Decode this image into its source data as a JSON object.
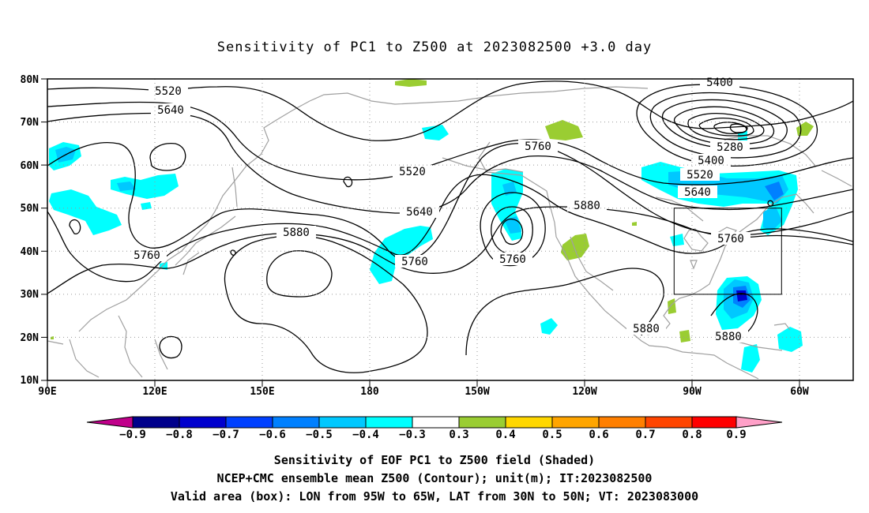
{
  "title": "Sensitivity of PC1 to Z500 at 2023082500 +3.0 day",
  "map": {
    "lat_labels": [
      "80N",
      "70N",
      "60N",
      "50N",
      "40N",
      "30N",
      "20N",
      "10N"
    ],
    "lon_labels": [
      "90E",
      "120E",
      "150E",
      "180",
      "150W",
      "120W",
      "90W",
      "60W"
    ],
    "contour_labels": [
      "5400",
      "5520",
      "5640",
      "5280",
      "5400",
      "5520",
      "5640",
      "5760",
      "5520",
      "5640",
      "5760",
      "5880",
      "5880",
      "5760",
      "5760",
      "5760",
      "5880",
      "5880"
    ],
    "box": {
      "lon_from": "95W",
      "lon_to": "65W",
      "lat_from": "30N",
      "lat_to": "50N"
    },
    "colors": {
      "neg_light": "#00ffff",
      "neg_mid": "#00c8ff",
      "neg_dark": "#0080ff",
      "neg_deep": "#0000cd",
      "pos_low": "#9acd32",
      "contour": "#000000",
      "coast": "#a0a0a0"
    }
  },
  "colorbar": {
    "labels": [
      "−0.9",
      "−0.8",
      "−0.7",
      "−0.6",
      "−0.5",
      "−0.4",
      "−0.3",
      "0.3",
      "0.4",
      "0.5",
      "0.6",
      "0.7",
      "0.8",
      "0.9"
    ],
    "colors": [
      "#c0008a",
      "#00008b",
      "#0000cd",
      "#0040ff",
      "#0080ff",
      "#00c8ff",
      "#00ffff",
      "#ffffff",
      "#9acd32",
      "#ffd700",
      "#ffa500",
      "#ff7f00",
      "#ff4500",
      "#ff0000",
      "#ffa0c8"
    ]
  },
  "captions": [
    "Sensitivity of EOF PC1 to Z500 field (Shaded)",
    "NCEP+CMC ensemble mean Z500 (Contour); unit(m); IT:2023082500",
    "Valid area (box): LON from 95W to 65W, LAT from 30N to 50N; VT: 2023083000"
  ]
}
